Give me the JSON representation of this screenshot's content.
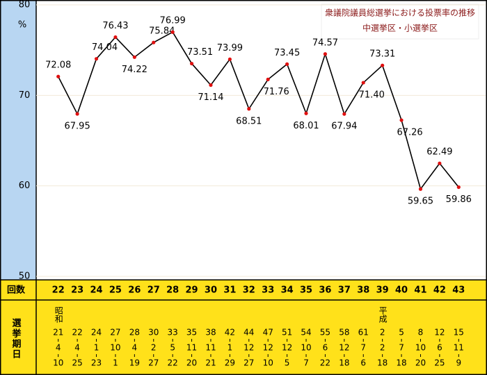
{
  "chart_data": {
    "type": "line",
    "title": "衆議院議員総選挙における投票率の推移",
    "subtitle": "中選挙区・小選挙区",
    "y_unit": "%",
    "row_label": "回数",
    "date_label": "選挙期日",
    "categories": [
      "22",
      "23",
      "24",
      "25",
      "26",
      "27",
      "28",
      "29",
      "30",
      "31",
      "32",
      "33",
      "34",
      "35",
      "36",
      "37",
      "38",
      "39",
      "40",
      "41",
      "42",
      "43"
    ],
    "era_labels": [
      "昭和",
      null,
      null,
      null,
      null,
      null,
      null,
      null,
      null,
      null,
      null,
      null,
      null,
      null,
      null,
      null,
      null,
      "平成",
      null,
      null,
      null,
      null
    ],
    "dates": [
      [
        "21",
        "4",
        "10"
      ],
      [
        "22",
        "4",
        "25"
      ],
      [
        "24",
        "1",
        "23"
      ],
      [
        "27",
        "10",
        "1"
      ],
      [
        "28",
        "4",
        "19"
      ],
      [
        "30",
        "2",
        "27"
      ],
      [
        "33",
        "5",
        "22"
      ],
      [
        "35",
        "11",
        "20"
      ],
      [
        "38",
        "11",
        "21"
      ],
      [
        "42",
        "1",
        "29"
      ],
      [
        "44",
        "12",
        "27"
      ],
      [
        "47",
        "12",
        "10"
      ],
      [
        "51",
        "12",
        "5"
      ],
      [
        "54",
        "10",
        "7"
      ],
      [
        "55",
        "6",
        "22"
      ],
      [
        "58",
        "12",
        "18"
      ],
      [
        "61",
        "7",
        "6"
      ],
      [
        "2",
        "2",
        "18"
      ],
      [
        "5",
        "7",
        "18"
      ],
      [
        "8",
        "10",
        "20"
      ],
      [
        "12",
        "6",
        "25"
      ],
      [
        "15",
        "11",
        "9"
      ]
    ],
    "series": [
      {
        "name": "投票率",
        "color": "#000000",
        "marker_color": "#e01010",
        "values": [
          72.08,
          67.95,
          74.04,
          76.43,
          74.22,
          75.84,
          76.99,
          73.51,
          71.14,
          73.99,
          68.51,
          71.76,
          73.45,
          68.01,
          74.57,
          67.94,
          71.4,
          73.31,
          67.26,
          59.65,
          62.49,
          59.86
        ],
        "value_labels": [
          "72.08",
          "67.95",
          "74.04",
          "76.43",
          "74.22",
          "75.84",
          "76.99",
          "73.51",
          "71.14",
          "73.99",
          "68.51",
          "71.76",
          "73.45",
          "68.01",
          "74.57",
          "67.94",
          "71.40",
          "73.31",
          "67.26",
          "59.65",
          "62.49",
          "59.86"
        ]
      }
    ],
    "ylim": [
      50,
      80
    ],
    "yticks": [
      50,
      60,
      70,
      80
    ],
    "grid": true
  }
}
